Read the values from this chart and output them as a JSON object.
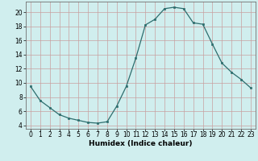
{
  "x": [
    0,
    1,
    2,
    3,
    4,
    5,
    6,
    7,
    8,
    9,
    10,
    11,
    12,
    13,
    14,
    15,
    16,
    17,
    18,
    19,
    20,
    21,
    22,
    23
  ],
  "y": [
    9.5,
    7.5,
    6.5,
    5.5,
    5.0,
    4.7,
    4.4,
    4.3,
    4.5,
    6.7,
    9.5,
    13.5,
    18.2,
    19.0,
    20.5,
    20.7,
    20.5,
    18.5,
    18.3,
    15.5,
    12.8,
    11.5,
    10.5,
    9.3
  ],
  "line_color": "#2d6e6e",
  "marker": "s",
  "marker_size": 2.0,
  "bg_color": "#d0eeee",
  "grid_major_color": "#c8a0a0",
  "grid_minor_color": "#c0d8d8",
  "xlabel": "Humidex (Indice chaleur)",
  "xlim": [
    -0.5,
    23.5
  ],
  "ylim": [
    3.5,
    21.5
  ],
  "yticks": [
    4,
    6,
    8,
    10,
    12,
    14,
    16,
    18,
    20
  ],
  "xticks": [
    0,
    1,
    2,
    3,
    4,
    5,
    6,
    7,
    8,
    9,
    10,
    11,
    12,
    13,
    14,
    15,
    16,
    17,
    18,
    19,
    20,
    21,
    22,
    23
  ],
  "xlabel_fontsize": 6.5,
  "tick_fontsize": 5.5
}
